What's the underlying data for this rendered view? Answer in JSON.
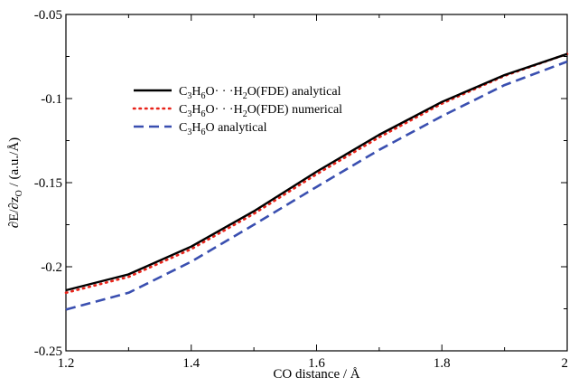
{
  "chart_data": {
    "type": "line",
    "title": "",
    "xlabel": "CO distance / Å",
    "ylabel": "∂E/∂zO / (a.u./Å)",
    "ylabel_parts": {
      "main": "∂E/∂z",
      "sub": "O",
      "rest": " / (a.u./Å)"
    },
    "xlim": [
      1.2,
      2.0
    ],
    "ylim": [
      -0.25,
      -0.05
    ],
    "xticks": [
      1.2,
      1.4,
      1.6,
      1.8,
      2.0
    ],
    "xtick_labels": [
      "1.2",
      "1.4",
      "1.6",
      "1.8",
      "2"
    ],
    "yticks": [
      -0.25,
      -0.2,
      -0.15,
      -0.1,
      -0.05
    ],
    "ytick_labels": [
      "-0.25",
      "-0.2",
      "-0.15",
      "-0.1",
      "-0.05"
    ],
    "grid": false,
    "legend_position": "top-left",
    "x": [
      1.2,
      1.3,
      1.4,
      1.5,
      1.6,
      1.7,
      1.8,
      1.9,
      2.0
    ],
    "series": [
      {
        "name": "C3H6O···H2O(FDE) analytical",
        "label_parts": [
          "C",
          "3",
          "H",
          "6",
          "O· · ·H",
          "2",
          "O(FDE) analytical"
        ],
        "color": "#000000",
        "style": "solid",
        "values": [
          -0.214,
          -0.2045,
          -0.188,
          -0.167,
          -0.1435,
          -0.1215,
          -0.102,
          -0.086,
          -0.0735
        ]
      },
      {
        "name": "C3H6O···H2O(FDE) numerical",
        "label_parts": [
          "C",
          "3",
          "H",
          "6",
          "O· · ·H",
          "2",
          "O(FDE) numerical"
        ],
        "color": "#e8231a",
        "style": "dotted",
        "values": [
          -0.2155,
          -0.206,
          -0.1895,
          -0.1685,
          -0.145,
          -0.123,
          -0.103,
          -0.0865,
          -0.0735
        ]
      },
      {
        "name": "C3H6O analytical",
        "label_parts": [
          "C",
          "3",
          "H",
          "6",
          "O analytical"
        ],
        "color": "#3a4fb0",
        "style": "dashed",
        "values": [
          -0.2255,
          -0.2155,
          -0.197,
          -0.175,
          -0.1525,
          -0.1305,
          -0.1105,
          -0.092,
          -0.078
        ]
      }
    ]
  }
}
